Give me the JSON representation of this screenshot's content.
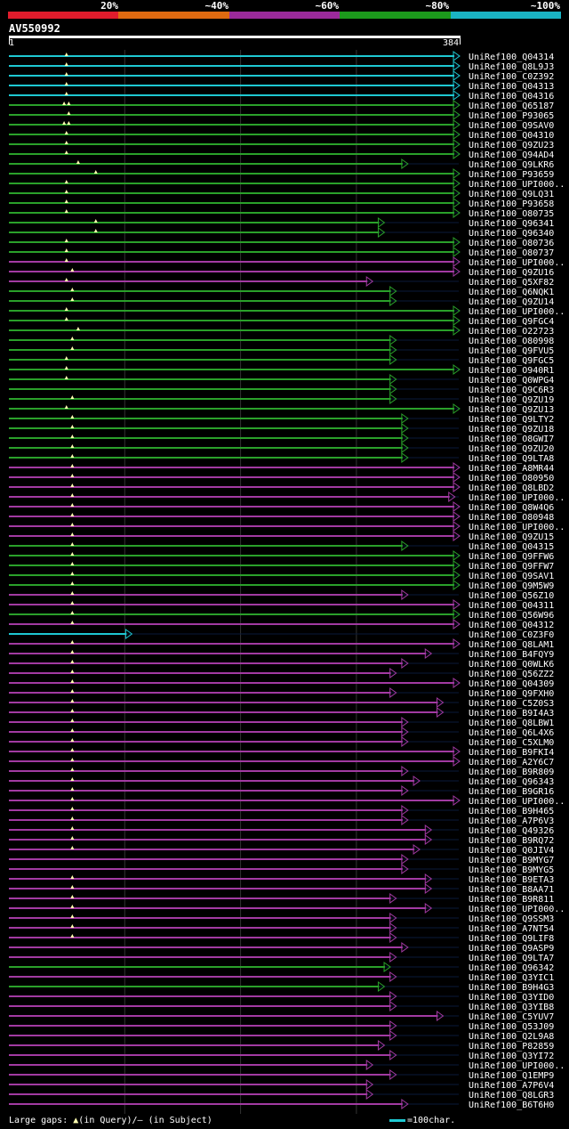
{
  "legend": {
    "labels": [
      "20%",
      "~40%",
      "~60%",
      "~80%",
      "~100%"
    ],
    "colors": [
      "#e01c2c",
      "#e06a10",
      "#9b2a9b",
      "#1c9a1c",
      "#1ab4c4"
    ]
  },
  "chart_data": {
    "type": "alignment-overview",
    "title": "AV550992",
    "query_range": [
      1,
      384
    ],
    "x_axis": {
      "start_label": "1",
      "end_label": "384"
    },
    "identity_bins": [
      "20%",
      "~40%",
      "~60%",
      "~80%",
      "~100%"
    ],
    "hits": [
      {
        "id": "UniRef100_Q04314",
        "color": "cyan",
        "end": 384,
        "marks": [
          50
        ]
      },
      {
        "id": "UniRef100_Q8L9J3",
        "color": "cyan",
        "end": 384,
        "marks": [
          50
        ]
      },
      {
        "id": "UniRef100_C0Z392",
        "color": "cyan",
        "end": 384,
        "marks": [
          50
        ]
      },
      {
        "id": "UniRef100_Q04313",
        "color": "cyan",
        "end": 384,
        "marks": [
          50
        ]
      },
      {
        "id": "UniRef100_Q04316",
        "color": "cyan",
        "end": 384,
        "marks": [
          50
        ]
      },
      {
        "id": "UniRef100_Q65187",
        "color": "green",
        "end": 384,
        "marks": [
          48,
          52
        ]
      },
      {
        "id": "UniRef100_P93065",
        "color": "green",
        "end": 384,
        "marks": [
          52
        ]
      },
      {
        "id": "UniRef100_Q9SAV0",
        "color": "green",
        "end": 384,
        "marks": [
          48,
          52
        ]
      },
      {
        "id": "UniRef100_Q04310",
        "color": "green",
        "end": 384,
        "marks": [
          50
        ]
      },
      {
        "id": "UniRef100_Q9ZU23",
        "color": "green",
        "end": 384,
        "marks": [
          50
        ]
      },
      {
        "id": "UniRef100_Q94AD4",
        "color": "green",
        "end": 384,
        "marks": [
          50
        ]
      },
      {
        "id": "UniRef100_Q9LKR6",
        "color": "green",
        "end": 340,
        "marks": [
          60
        ]
      },
      {
        "id": "UniRef100_P93659",
        "color": "green",
        "end": 384,
        "marks": [
          75
        ]
      },
      {
        "id": "UniRef100_UPI000..",
        "color": "green",
        "end": 384,
        "marks": [
          50
        ]
      },
      {
        "id": "UniRef100_Q9LQ31",
        "color": "green",
        "end": 384,
        "marks": [
          50
        ]
      },
      {
        "id": "UniRef100_P93658",
        "color": "green",
        "end": 384,
        "marks": [
          50
        ]
      },
      {
        "id": "UniRef100_O80735",
        "color": "green",
        "end": 384,
        "marks": [
          50
        ]
      },
      {
        "id": "UniRef100_Q96341",
        "color": "green",
        "end": 320,
        "marks": [
          75
        ]
      },
      {
        "id": "UniRef100_Q96340",
        "color": "green",
        "end": 320,
        "marks": [
          75
        ]
      },
      {
        "id": "UniRef100_O80736",
        "color": "green",
        "end": 384,
        "marks": [
          50
        ]
      },
      {
        "id": "UniRef100_O80737",
        "color": "green",
        "end": 384,
        "marks": [
          50
        ]
      },
      {
        "id": "UniRef100_UPI000..",
        "color": "magenta",
        "end": 384,
        "marks": [
          50
        ]
      },
      {
        "id": "UniRef100_Q9ZU16",
        "color": "magenta",
        "end": 384,
        "marks": [
          55
        ]
      },
      {
        "id": "UniRef100_Q5XF82",
        "color": "magenta",
        "end": 310,
        "marks": [
          50
        ]
      },
      {
        "id": "UniRef100_Q6NQK1",
        "color": "green",
        "end": 330,
        "marks": [
          55
        ]
      },
      {
        "id": "UniRef100_Q9ZU14",
        "color": "green",
        "end": 330,
        "marks": [
          55
        ]
      },
      {
        "id": "UniRef100_UPI000..",
        "color": "green",
        "end": 384,
        "marks": [
          50
        ]
      },
      {
        "id": "UniRef100_Q9FGC4",
        "color": "green",
        "end": 384,
        "marks": [
          50
        ]
      },
      {
        "id": "UniRef100_O22723",
        "color": "green",
        "end": 384,
        "marks": [
          60
        ]
      },
      {
        "id": "UniRef100_O80998",
        "color": "green",
        "end": 330,
        "marks": [
          55
        ]
      },
      {
        "id": "UniRef100_Q9FVU5",
        "color": "green",
        "end": 330,
        "marks": [
          55
        ]
      },
      {
        "id": "UniRef100_Q9FGC5",
        "color": "green",
        "end": 330,
        "marks": [
          50
        ]
      },
      {
        "id": "UniRef100_O940R1",
        "color": "green",
        "end": 384,
        "marks": [
          50
        ]
      },
      {
        "id": "UniRef100_Q0WPG4",
        "color": "green",
        "end": 330,
        "marks": [
          50
        ]
      },
      {
        "id": "UniRef100_Q9C6R3",
        "color": "green",
        "end": 330,
        "marks": []
      },
      {
        "id": "UniRef100_Q9ZU19",
        "color": "green",
        "end": 330,
        "marks": [
          55
        ]
      },
      {
        "id": "UniRef100_Q9ZU13",
        "color": "green",
        "end": 384,
        "marks": [
          50
        ]
      },
      {
        "id": "UniRef100_Q9LTY2",
        "color": "green",
        "end": 340,
        "marks": [
          55
        ]
      },
      {
        "id": "UniRef100_Q9ZU18",
        "color": "green",
        "end": 340,
        "marks": [
          55
        ]
      },
      {
        "id": "UniRef100_O8GWI7",
        "color": "green",
        "end": 340,
        "marks": [
          55
        ]
      },
      {
        "id": "UniRef100_Q9ZU20",
        "color": "green",
        "end": 340,
        "marks": [
          55
        ]
      },
      {
        "id": "UniRef100_Q9LTA8",
        "color": "green",
        "end": 340,
        "marks": [
          55
        ]
      },
      {
        "id": "UniRef100_A8MR44",
        "color": "magenta",
        "end": 384,
        "marks": [
          55
        ]
      },
      {
        "id": "UniRef100_O80950",
        "color": "magenta",
        "end": 384,
        "marks": [
          55
        ]
      },
      {
        "id": "UniRef100_Q8LBD2",
        "color": "magenta",
        "end": 384,
        "marks": [
          55
        ]
      },
      {
        "id": "UniRef100_UPI000..",
        "color": "magenta",
        "end": 380,
        "marks": [
          55
        ]
      },
      {
        "id": "UniRef100_Q8W4Q6",
        "color": "magenta",
        "end": 384,
        "marks": [
          55
        ]
      },
      {
        "id": "UniRef100_O80948",
        "color": "magenta",
        "end": 384,
        "marks": [
          55
        ]
      },
      {
        "id": "UniRef100_UPI000..",
        "color": "magenta",
        "end": 384,
        "marks": [
          55
        ]
      },
      {
        "id": "UniRef100_Q9ZU15",
        "color": "magenta",
        "end": 384,
        "marks": [
          55
        ]
      },
      {
        "id": "UniRef100_Q04315",
        "color": "green",
        "end": 340,
        "marks": [
          55
        ]
      },
      {
        "id": "UniRef100_Q9FFW6",
        "color": "green",
        "end": 384,
        "marks": [
          55
        ]
      },
      {
        "id": "UniRef100_Q9FFW7",
        "color": "green",
        "end": 384,
        "marks": [
          55
        ]
      },
      {
        "id": "UniRef100_Q9SAV1",
        "color": "green",
        "end": 384,
        "marks": [
          55
        ]
      },
      {
        "id": "UniRef100_Q9M5W9",
        "color": "green",
        "end": 384,
        "marks": [
          55
        ]
      },
      {
        "id": "UniRef100_Q56Z10",
        "color": "magenta",
        "end": 340,
        "marks": [
          55
        ]
      },
      {
        "id": "UniRef100_Q04311",
        "color": "magenta",
        "end": 384,
        "marks": [
          55
        ]
      },
      {
        "id": "UniRef100_Q56W96",
        "color": "green",
        "end": 384,
        "marks": [
          55
        ]
      },
      {
        "id": "UniRef100_Q04312",
        "color": "magenta",
        "end": 384,
        "marks": [
          55
        ]
      },
      {
        "id": "UniRef100_C0Z3F0",
        "color": "cyan",
        "end": 105,
        "marks": []
      },
      {
        "id": "UniRef100_Q8LAM1",
        "color": "magenta",
        "end": 384,
        "marks": [
          55
        ]
      },
      {
        "id": "UniRef100_B4FQY9",
        "color": "magenta",
        "end": 360,
        "marks": [
          55
        ]
      },
      {
        "id": "UniRef100_Q0WLK6",
        "color": "magenta",
        "end": 340,
        "marks": [
          55
        ]
      },
      {
        "id": "UniRef100_Q56ZZ2",
        "color": "magenta",
        "end": 330,
        "marks": [
          55
        ]
      },
      {
        "id": "UniRef100_Q04309",
        "color": "magenta",
        "end": 384,
        "marks": [
          55
        ]
      },
      {
        "id": "UniRef100_Q9FXH0",
        "color": "magenta",
        "end": 330,
        "marks": [
          55
        ]
      },
      {
        "id": "UniRef100_C5Z0S3",
        "color": "magenta",
        "end": 370,
        "marks": [
          55
        ]
      },
      {
        "id": "UniRef100_B9I4A3",
        "color": "magenta",
        "end": 370,
        "marks": [
          55
        ]
      },
      {
        "id": "UniRef100_Q8LBW1",
        "color": "magenta",
        "end": 340,
        "marks": [
          55
        ]
      },
      {
        "id": "UniRef100_Q6L4X6",
        "color": "magenta",
        "end": 340,
        "marks": [
          55
        ]
      },
      {
        "id": "UniRef100_C5XLM0",
        "color": "magenta",
        "end": 340,
        "marks": [
          55
        ]
      },
      {
        "id": "UniRef100_B9FKI4",
        "color": "magenta",
        "end": 384,
        "marks": [
          55
        ]
      },
      {
        "id": "UniRef100_A2Y6C7",
        "color": "magenta",
        "end": 384,
        "marks": [
          55
        ]
      },
      {
        "id": "UniRef100_B9R809",
        "color": "magenta",
        "end": 340,
        "marks": [
          55
        ]
      },
      {
        "id": "UniRef100_Q96343",
        "color": "magenta",
        "end": 350,
        "marks": [
          55
        ]
      },
      {
        "id": "UniRef100_B9GR16",
        "color": "magenta",
        "end": 340,
        "marks": [
          55
        ]
      },
      {
        "id": "UniRef100_UPI000..",
        "color": "magenta",
        "end": 384,
        "marks": [
          55
        ]
      },
      {
        "id": "UniRef100_B9H465",
        "color": "magenta",
        "end": 340,
        "marks": [
          55
        ]
      },
      {
        "id": "UniRef100_A7P6V3",
        "color": "magenta",
        "end": 340,
        "marks": [
          55
        ]
      },
      {
        "id": "UniRef100_Q49326",
        "color": "magenta",
        "end": 360,
        "marks": [
          55
        ]
      },
      {
        "id": "UniRef100_B9RQ72",
        "color": "magenta",
        "end": 360,
        "marks": [
          55
        ]
      },
      {
        "id": "UniRef100_Q0JIV4",
        "color": "magenta",
        "end": 350,
        "marks": [
          55
        ]
      },
      {
        "id": "UniRef100_B9MYG7",
        "color": "magenta",
        "end": 340,
        "marks": []
      },
      {
        "id": "UniRef100_B9MYG5",
        "color": "magenta",
        "end": 340,
        "marks": []
      },
      {
        "id": "UniRef100_B9ETA3",
        "color": "magenta",
        "end": 360,
        "marks": [
          55
        ]
      },
      {
        "id": "UniRef100_B8AA71",
        "color": "magenta",
        "end": 360,
        "marks": [
          55
        ]
      },
      {
        "id": "UniRef100_B9R811",
        "color": "magenta",
        "end": 330,
        "marks": [
          55
        ]
      },
      {
        "id": "UniRef100_UPI000..",
        "color": "magenta",
        "end": 360,
        "marks": [
          55
        ]
      },
      {
        "id": "UniRef100_Q9SSM3",
        "color": "magenta",
        "end": 330,
        "marks": [
          55
        ]
      },
      {
        "id": "UniRef100_A7NT54",
        "color": "magenta",
        "end": 330,
        "marks": [
          55
        ]
      },
      {
        "id": "UniRef100_Q9LIF8",
        "color": "magenta",
        "end": 330,
        "marks": [
          55
        ]
      },
      {
        "id": "UniRef100_Q9ASP9",
        "color": "magenta",
        "end": 340,
        "marks": []
      },
      {
        "id": "UniRef100_Q9LTA7",
        "color": "magenta",
        "end": 330,
        "marks": []
      },
      {
        "id": "UniRef100_Q96342",
        "color": "green",
        "end": 325,
        "marks": []
      },
      {
        "id": "UniRef100_Q3YIC1",
        "color": "magenta",
        "end": 330,
        "marks": []
      },
      {
        "id": "UniRef100_B9H4G3",
        "color": "green",
        "end": 320,
        "marks": []
      },
      {
        "id": "UniRef100_Q3YID0",
        "color": "magenta",
        "end": 330,
        "marks": []
      },
      {
        "id": "UniRef100_Q3YIB8",
        "color": "magenta",
        "end": 330,
        "marks": []
      },
      {
        "id": "UniRef100_C5YUV7",
        "color": "magenta",
        "end": 370,
        "marks": []
      },
      {
        "id": "UniRef100_Q53J09",
        "color": "magenta",
        "end": 330,
        "marks": []
      },
      {
        "id": "UniRef100_Q2L9A8",
        "color": "magenta",
        "end": 330,
        "marks": []
      },
      {
        "id": "UniRef100_P82859",
        "color": "magenta",
        "end": 320,
        "marks": []
      },
      {
        "id": "UniRef100_Q3YI72",
        "color": "magenta",
        "end": 330,
        "marks": []
      },
      {
        "id": "UniRef100_UPI000..",
        "color": "magenta",
        "end": 310,
        "marks": []
      },
      {
        "id": "UniRef100_Q1EMP9",
        "color": "magenta",
        "end": 330,
        "marks": []
      },
      {
        "id": "UniRef100_A7P6V4",
        "color": "magenta",
        "end": 310,
        "marks": []
      },
      {
        "id": "UniRef100_Q8LGR3",
        "color": "magenta",
        "end": 310,
        "marks": []
      },
      {
        "id": "UniRef100_B6T6H0",
        "color": "magenta",
        "end": 340,
        "marks": []
      }
    ]
  },
  "footer": {
    "gaps_label": "Large gaps:",
    "query_note": "(in Query)/",
    "subject_note": "– (in Subject)",
    "scale_label": "=100char."
  },
  "hit_colors": {
    "cyan": "#1ec8d2",
    "green": "#2aa02a",
    "magenta": "#a23aa2"
  }
}
